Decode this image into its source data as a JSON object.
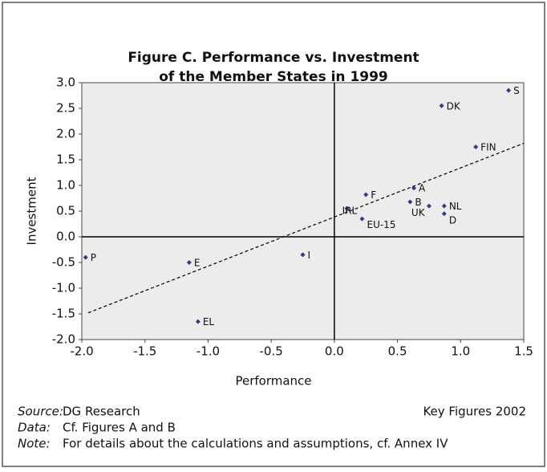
{
  "chart_data": {
    "type": "scatter",
    "title": [
      "Figure C. Performance vs. Investment",
      "of the Member States in 1999"
    ],
    "x_label": "Performance",
    "y_label": "Investment",
    "x": [
      1.38,
      0.85,
      1.12,
      0.63,
      0.25,
      0.6,
      0.87,
      0.75,
      0.87,
      0.1,
      0.22,
      -0.25,
      -1.97,
      -1.15,
      -1.08
    ],
    "series": [
      {
        "color": "#2e3a8c",
        "values": [
          2.85,
          2.55,
          1.75,
          0.95,
          0.82,
          0.68,
          0.6,
          0.6,
          0.45,
          0.55,
          0.35,
          -0.35,
          -0.4,
          -0.5,
          -1.65
        ]
      }
    ],
    "point_labels": [
      "S",
      "DK",
      "FIN",
      "A",
      "F",
      "B",
      "NL",
      "UK",
      "D",
      "IRL",
      "EU-15",
      "I",
      "P",
      "E",
      "EL"
    ],
    "label_colors": [
      "#111",
      "#111",
      "#111",
      "#111",
      "#111",
      "#111",
      "#111",
      "#111",
      "#111",
      "#111",
      "#3a4fa8",
      "#111",
      "#111",
      "#111",
      "#111"
    ],
    "trendline": {
      "x": [
        -1.95,
        1.5
      ],
      "y": [
        -1.48,
        1.82
      ]
    },
    "xlim": [
      -2,
      1.5
    ],
    "xticks": [
      {
        "value": -2,
        "label": "-2.0"
      },
      {
        "value": -1.5,
        "label": "-1.5"
      },
      {
        "value": -1,
        "label": "-1.0"
      },
      {
        "value": -0.5,
        "label": "-0.5"
      },
      {
        "value": 0,
        "label": "0.0"
      },
      {
        "value": 0.5,
        "label": "0.5"
      },
      {
        "value": 1,
        "label": "1.0"
      },
      {
        "value": 1.5,
        "label": "1.5"
      }
    ],
    "ylim": [
      -2,
      3
    ],
    "yticks": [
      {
        "value": -2,
        "label": "-2.0"
      },
      {
        "value": -1.5,
        "label": "-1.5"
      },
      {
        "value": -1,
        "label": "-1.0"
      },
      {
        "value": -0.5,
        "label": "-0.5"
      },
      {
        "value": 0,
        "label": "0.0"
      },
      {
        "value": 0.5,
        "label": "0.5"
      },
      {
        "value": 1,
        "label": "1.0"
      },
      {
        "value": 1.5,
        "label": "1.5"
      },
      {
        "value": 2,
        "label": "2.0"
      },
      {
        "value": 2.5,
        "label": "2.5"
      },
      {
        "value": 3,
        "label": "3.0"
      }
    ],
    "footer": {
      "source_key": "Source:",
      "source": "DG Research",
      "right": "Key Figures 2002",
      "data_key": "Data:",
      "data": "Cf. Figures A and B",
      "note_key": "Note:",
      "note": "For details about the calculations and assumptions, cf. Annex IV"
    }
  }
}
